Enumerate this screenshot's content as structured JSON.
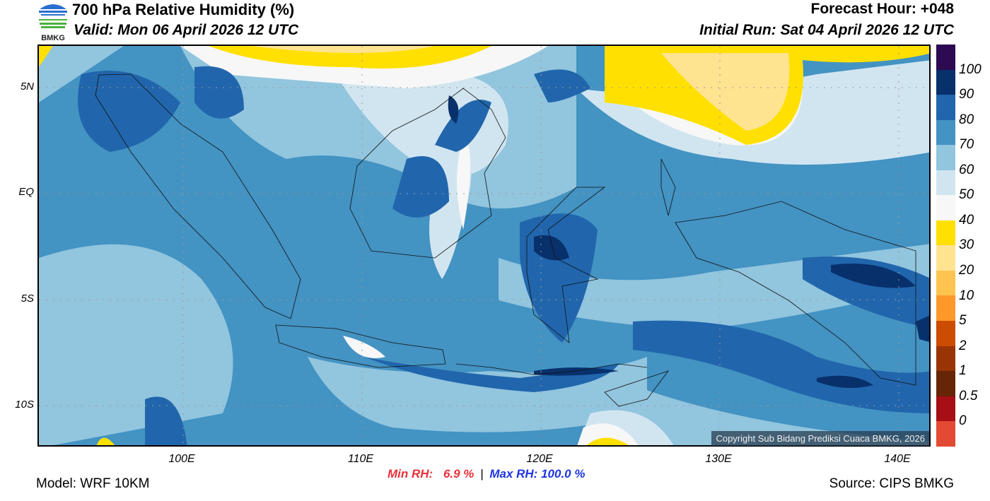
{
  "header": {
    "title": "700 hPa Relative Humidity (%)",
    "valid": "Valid: Mon 06 April 2026 12 UTC",
    "forecast_hour": "Forecast Hour: +048",
    "initial_run": "Initial Run: Sat 04 April 2026 12 UTC",
    "logo_text": "BMKG"
  },
  "map": {
    "lat_labels": [
      "5N",
      "EQ",
      "5S",
      "10S"
    ],
    "lon_labels": [
      "100E",
      "110E",
      "120E",
      "130E",
      "140E"
    ],
    "copyright": "Copyright Sub Bidang Prediksi Cuaca BMKG, 2026"
  },
  "colorbar": {
    "labels": [
      "100",
      "90",
      "80",
      "70",
      "60",
      "50",
      "40",
      "30",
      "20",
      "10",
      "5",
      "2",
      "1",
      "0.5",
      "0"
    ],
    "colors": [
      "#2d0a52",
      "#08306b",
      "#2166ac",
      "#4393c3",
      "#92c5de",
      "#d1e5f0",
      "#f7f7f7",
      "#ffe000",
      "#fee391",
      "#fec44f",
      "#fe9929",
      "#cc4c02",
      "#993404",
      "#662506",
      "#a50f15",
      "#e34a33"
    ]
  },
  "footer": {
    "min_label": "Min RH:",
    "min_value": "6.9 %",
    "separator": "|",
    "max_label": "Max RH:",
    "max_value": "100.0 %",
    "model": "Model: WRF 10KM",
    "source": "Source: CIPS BMKG",
    "min_color": "#e8303a",
    "max_color": "#1f35e0"
  }
}
